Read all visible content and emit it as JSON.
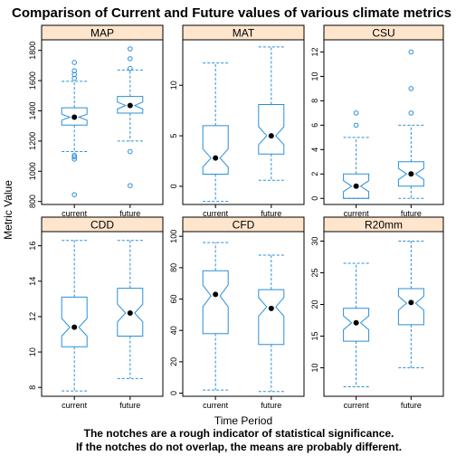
{
  "figure": {
    "title": "Comparison of Current and Future values of various climate metrics",
    "xlabel": "Time Period",
    "ylabel": "Metric Value",
    "notes": [
      "The notches are a rough indicator of statistical significance.",
      "If the notches do not overlap, the means are probably different."
    ],
    "colors": {
      "box": "#2a8fd8",
      "whisker": "#2a8fd8",
      "outlier": "#2a8fd8",
      "mean_dot": "#000000",
      "strip_bg": "#ffe5cc",
      "panel_border": "#000000"
    }
  },
  "chart_data": [
    {
      "type": "boxplot",
      "panel": "MAP",
      "categories": [
        "current",
        "future"
      ],
      "ylim": [
        780,
        1870
      ],
      "yticks": [
        800,
        1000,
        1200,
        1400,
        1600,
        1800
      ],
      "boxes": [
        {
          "lower_whisker": 1130,
          "q1": 1305,
          "median": 1358,
          "q3": 1420,
          "upper_whisker": 1595,
          "notch_low": 1338,
          "notch_high": 1378,
          "mean": 1358,
          "outliers": [
            845,
            1080,
            1095,
            1105,
            1615,
            1640,
            1665,
            1720
          ]
        },
        {
          "lower_whisker": 1200,
          "q1": 1385,
          "median": 1435,
          "q3": 1495,
          "upper_whisker": 1670,
          "notch_low": 1412,
          "notch_high": 1458,
          "mean": 1435,
          "outliers": [
            905,
            1130,
            1680,
            1745,
            1810
          ]
        }
      ]
    },
    {
      "type": "boxplot",
      "panel": "MAT",
      "categories": [
        "current",
        "future"
      ],
      "ylim": [
        -1.8,
        14.5
      ],
      "yticks": [
        0,
        5,
        10
      ],
      "boxes": [
        {
          "lower_whisker": -1.5,
          "q1": 1.2,
          "median": 2.8,
          "q3": 6.0,
          "upper_whisker": 12.2,
          "notch_low": 1.9,
          "notch_high": 3.7,
          "mean": 2.8,
          "outliers": []
        },
        {
          "lower_whisker": 0.6,
          "q1": 3.2,
          "median": 5.0,
          "q3": 8.1,
          "upper_whisker": 13.8,
          "notch_low": 4.1,
          "notch_high": 5.9,
          "mean": 5.0,
          "outliers": []
        }
      ]
    },
    {
      "type": "boxplot",
      "panel": "CSU",
      "categories": [
        "current",
        "future"
      ],
      "ylim": [
        -0.5,
        13
      ],
      "yticks": [
        0,
        2,
        4,
        6,
        8,
        10,
        12
      ],
      "boxes": [
        {
          "lower_whisker": 0,
          "q1": 0,
          "median": 1,
          "q3": 2,
          "upper_whisker": 5,
          "notch_low": 0.55,
          "notch_high": 1.45,
          "mean": 1,
          "outliers": [
            6,
            7
          ]
        },
        {
          "lower_whisker": 0,
          "q1": 1,
          "median": 2,
          "q3": 3,
          "upper_whisker": 6,
          "notch_low": 1.55,
          "notch_high": 2.45,
          "mean": 2,
          "outliers": [
            7,
            9,
            12
          ]
        }
      ]
    },
    {
      "type": "boxplot",
      "panel": "CDD",
      "categories": [
        "current",
        "future"
      ],
      "ylim": [
        7.5,
        16.8
      ],
      "yticks": [
        8,
        10,
        12,
        14,
        16
      ],
      "boxes": [
        {
          "lower_whisker": 7.8,
          "q1": 10.3,
          "median": 11.4,
          "q3": 13.1,
          "upper_whisker": 16.3,
          "notch_low": 10.9,
          "notch_high": 11.9,
          "mean": 11.4,
          "outliers": []
        },
        {
          "lower_whisker": 8.5,
          "q1": 10.9,
          "median": 12.2,
          "q3": 13.6,
          "upper_whisker": 16.3,
          "notch_low": 11.7,
          "notch_high": 12.7,
          "mean": 12.2,
          "outliers": []
        }
      ]
    },
    {
      "type": "boxplot",
      "panel": "CFD",
      "categories": [
        "current",
        "future"
      ],
      "ylim": [
        -2,
        103
      ],
      "yticks": [
        0,
        20,
        40,
        60,
        80,
        100
      ],
      "boxes": [
        {
          "lower_whisker": 2,
          "q1": 38,
          "median": 62,
          "q3": 78,
          "upper_whisker": 96,
          "notch_low": 55,
          "notch_high": 69,
          "mean": 63,
          "outliers": []
        },
        {
          "lower_whisker": 1,
          "q1": 31,
          "median": 55,
          "q3": 66,
          "upper_whisker": 88,
          "notch_low": 49,
          "notch_high": 61,
          "mean": 54,
          "outliers": []
        }
      ]
    },
    {
      "type": "boxplot",
      "panel": "R20mm",
      "categories": [
        "current",
        "future"
      ],
      "ylim": [
        5.5,
        31.5
      ],
      "yticks": [
        10,
        15,
        20,
        25,
        30
      ],
      "boxes": [
        {
          "lower_whisker": 7,
          "q1": 14.2,
          "median": 17.1,
          "q3": 19.4,
          "upper_whisker": 26.5,
          "notch_low": 16.0,
          "notch_high": 18.2,
          "mean": 17.1,
          "outliers": []
        },
        {
          "lower_whisker": 10,
          "q1": 16.8,
          "median": 20.2,
          "q3": 22.5,
          "upper_whisker": 30,
          "notch_low": 19.1,
          "notch_high": 21.3,
          "mean": 20.3,
          "outliers": []
        }
      ]
    }
  ]
}
